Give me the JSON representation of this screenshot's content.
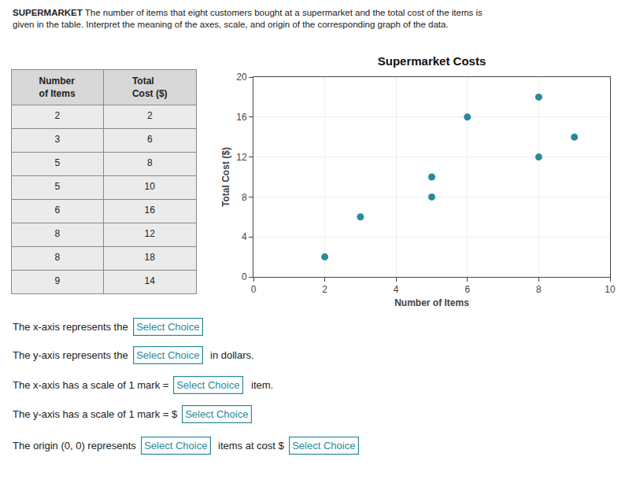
{
  "chart_data": {
    "type": "scatter",
    "title": "Supermarket Costs",
    "subtitle": "SUPERMARKET The number of items that eight customers bought at a supermarket and the total cost of the items is\ngiven in the table. Interpret the meaning of the axes, scale, and origin of the corresponding graph of the data.",
    "x_label": "Number of Items",
    "y_label": "Total Cost ($)",
    "x": [
      2,
      3,
      5,
      5,
      6,
      8,
      8,
      9
    ],
    "values": [
      2,
      6,
      8,
      10,
      16,
      12,
      18,
      14
    ],
    "color": "#2a8a9a",
    "xlim": [
      0,
      10
    ],
    "ylim": [
      0,
      20
    ],
    "xticks": [
      0,
      2,
      4,
      6,
      8,
      10
    ],
    "yticks": [
      0,
      4,
      8,
      12,
      16,
      20
    ],
    "grid": true,
    "table_headers": [
      "Number\nof Items",
      "Total\nCost ($)"
    ],
    "annotations": [
      [
        "The x-axis represents the",
        "Select Choice"
      ],
      [
        "The y-axis represents the",
        "Select Choice",
        " in dollars."
      ],
      [
        "The x-axis has a scale of 1 mark =",
        "Select Choice",
        "item."
      ],
      [
        "The y-axis has a scale of 1 mark = $",
        "Select Choice"
      ],
      [
        "The origin (0, 0) represents",
        "Select Choice",
        "items at cost $",
        "Select Choice"
      ]
    ]
  }
}
